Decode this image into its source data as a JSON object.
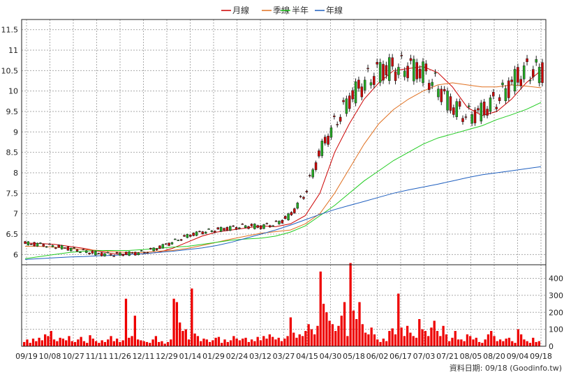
{
  "legend": [
    {
      "label": "月線",
      "color": "#cc0000"
    },
    {
      "label": "季線",
      "color": "#e07020"
    },
    {
      "label": "半年",
      "color": "#22cc22"
    },
    {
      "label": "年線",
      "color": "#1f5fbf"
    }
  ],
  "footer": {
    "text": "資料日期: 09/18 (Goodinfo.tw)"
  },
  "chart_data": [
    {
      "type": "candlestick",
      "ylim": [
        5.75,
        11.75
      ],
      "y_ticks": [
        6,
        6.5,
        7,
        7.5,
        8,
        8.5,
        9,
        9.5,
        10,
        10.5,
        11,
        11.5
      ],
      "x_tick_labels": [
        "09/19",
        "10/08",
        "10/27",
        "11/11",
        "11/26",
        "12/11",
        "12/29",
        "01/14",
        "01/29",
        "02/24",
        "03/12",
        "03/27",
        "04/15",
        "04/30",
        "05/18",
        "06/02",
        "06/17",
        "07/03",
        "07/21",
        "08/05",
        "08/20",
        "09/04",
        "09/18"
      ],
      "grid": true,
      "up_color": "#cc0000",
      "down_color": "#22aa22",
      "series": [
        {
          "name": "月線",
          "color": "#cc0000",
          "values": [
            6.28,
            6.27,
            6.25,
            6.2,
            6.15,
            6.08,
            6.02,
            6.0,
            6.02,
            6.05,
            6.15,
            6.3,
            6.45,
            6.55,
            6.6,
            6.65,
            6.7,
            6.68,
            6.75,
            6.95,
            7.5,
            8.5,
            9.2,
            9.8,
            10.2,
            10.5,
            10.55,
            10.6,
            10.45,
            10.1,
            9.6,
            9.4,
            9.5,
            9.8,
            10.2,
            10.5
          ]
        },
        {
          "name": "季線",
          "color": "#e07020",
          "values": [
            6.2,
            6.2,
            6.18,
            6.15,
            6.12,
            6.1,
            6.07,
            6.05,
            6.05,
            6.08,
            6.1,
            6.15,
            6.22,
            6.3,
            6.38,
            6.45,
            6.52,
            6.56,
            6.6,
            6.75,
            7.0,
            7.5,
            8.1,
            8.7,
            9.2,
            9.55,
            9.8,
            10.0,
            10.15,
            10.2,
            10.15,
            10.1,
            10.1,
            10.15,
            10.12,
            10.08
          ]
        },
        {
          "name": "半年",
          "color": "#22cc22",
          "values": [
            5.9,
            5.95,
            6.0,
            6.05,
            6.08,
            6.1,
            6.1,
            6.1,
            6.12,
            6.15,
            6.18,
            6.2,
            6.25,
            6.3,
            6.35,
            6.38,
            6.4,
            6.45,
            6.55,
            6.7,
            6.95,
            7.2,
            7.5,
            7.8,
            8.05,
            8.3,
            8.5,
            8.7,
            8.85,
            8.95,
            9.05,
            9.15,
            9.3,
            9.42,
            9.55,
            9.72
          ]
        },
        {
          "name": "年線",
          "color": "#1f5fbf",
          "values": [
            5.88,
            5.9,
            5.92,
            5.94,
            5.95,
            5.97,
            5.98,
            6.0,
            6.02,
            6.05,
            6.08,
            6.12,
            6.16,
            6.22,
            6.3,
            6.4,
            6.5,
            6.6,
            6.72,
            6.85,
            6.98,
            7.1,
            7.2,
            7.3,
            7.4,
            7.5,
            7.58,
            7.65,
            7.72,
            7.8,
            7.88,
            7.95,
            8.0,
            8.05,
            8.1,
            8.15
          ]
        }
      ]
    },
    {
      "type": "bar",
      "name": "volume",
      "color": "#ee0000",
      "ylim": [
        0,
        480
      ],
      "y_ticks": [
        0,
        100,
        200,
        300,
        400
      ],
      "values": [
        25,
        40,
        20,
        45,
        30,
        50,
        35,
        70,
        60,
        90,
        40,
        30,
        50,
        45,
        35,
        60,
        30,
        25,
        40,
        55,
        30,
        20,
        65,
        45,
        30,
        20,
        35,
        25,
        40,
        60,
        30,
        45,
        25,
        35,
        280,
        50,
        60,
        180,
        40,
        35,
        30,
        25,
        20,
        40,
        60,
        25,
        30,
        15,
        25,
        40,
        280,
        260,
        140,
        90,
        100,
        40,
        340,
        75,
        60,
        30,
        45,
        40,
        25,
        35,
        50,
        55,
        20,
        40,
        25,
        35,
        60,
        45,
        35,
        45,
        50,
        25,
        40,
        30,
        55,
        35,
        60,
        45,
        70,
        55,
        40,
        50,
        30,
        45,
        60,
        170,
        80,
        50,
        70,
        60,
        90,
        130,
        100,
        70,
        120,
        440,
        250,
        200,
        150,
        130,
        90,
        120,
        180,
        260,
        60,
        490,
        210,
        160,
        260,
        130,
        80,
        70,
        110,
        70,
        40,
        25,
        45,
        30,
        90,
        105,
        70,
        310,
        110,
        60,
        120,
        80,
        60,
        50,
        160,
        100,
        90,
        60,
        110,
        150,
        90,
        60,
        120,
        70,
        30,
        50,
        90,
        40,
        40,
        30,
        70,
        60,
        40,
        50,
        25,
        20,
        40,
        70,
        90,
        60,
        30,
        40,
        30,
        45,
        50,
        30,
        20,
        100,
        70,
        40,
        30,
        20,
        50,
        25,
        30
      ]
    }
  ]
}
